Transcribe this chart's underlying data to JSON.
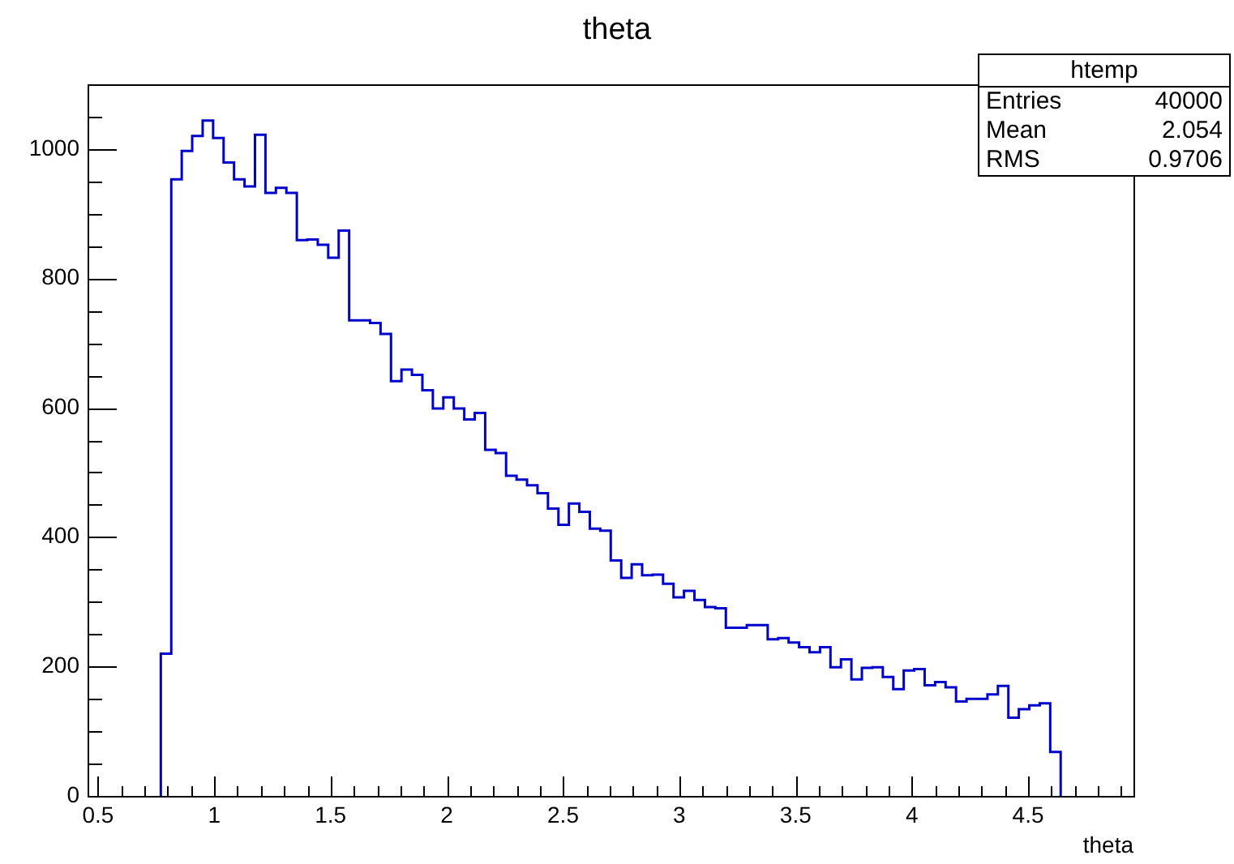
{
  "chart_data": {
    "type": "histogram",
    "title": "theta",
    "xlabel": "theta",
    "bins": [
      0.77,
      0.815,
      0.86,
      0.905,
      0.95,
      0.995,
      1.04,
      1.085,
      1.13,
      1.175,
      1.22,
      1.265,
      1.31,
      1.355,
      1.4,
      1.445,
      1.49,
      1.535,
      1.58,
      1.625,
      1.67,
      1.715,
      1.76,
      1.805,
      1.85,
      1.895,
      1.94,
      1.985,
      2.03,
      2.075,
      2.12,
      2.165,
      2.21,
      2.255,
      2.3,
      2.345,
      2.39,
      2.435,
      2.48,
      2.525,
      2.57,
      2.615,
      2.66,
      2.705,
      2.75,
      2.795,
      2.84,
      2.885,
      2.93,
      2.975,
      3.02,
      3.065,
      3.11,
      3.155,
      3.2,
      3.245,
      3.29,
      3.335,
      3.38,
      3.425,
      3.47,
      3.515,
      3.56,
      3.605,
      3.65,
      3.695,
      3.74,
      3.785,
      3.83,
      3.875,
      3.92,
      3.965,
      4.01,
      4.055,
      4.1,
      4.145,
      4.19,
      4.235,
      4.28,
      4.325,
      4.37,
      4.415,
      4.46,
      4.505,
      4.55,
      4.595,
      4.64
    ],
    "values": [
      220,
      953,
      997,
      1020,
      1044,
      1017,
      979,
      953,
      942,
      1022,
      932,
      940,
      932,
      859,
      860,
      852,
      832,
      874,
      735,
      735,
      731,
      714,
      641,
      659,
      651,
      627,
      599,
      616,
      599,
      582,
      592,
      535,
      530,
      495,
      489,
      480,
      468,
      444,
      419,
      452,
      439,
      413,
      410,
      364,
      337,
      358,
      341,
      342,
      328,
      307,
      317,
      303,
      292,
      290,
      260,
      260,
      264,
      264,
      242,
      244,
      237,
      230,
      222,
      230,
      199,
      211,
      180,
      198,
      199,
      184,
      165,
      194,
      196,
      171,
      176,
      168,
      146,
      150,
      150,
      157,
      170,
      121,
      134,
      140,
      143,
      68
    ],
    "color": "#0000cc",
    "xlim": [
      0.455,
      4.953
    ],
    "xticks": [
      0.5,
      {
        "value": 0.6,
        "label": null
      },
      {
        "value": 0.7,
        "label": null
      },
      {
        "value": 0.8,
        "label": null
      },
      {
        "value": 0.9,
        "label": null
      },
      1,
      {
        "value": 1.1,
        "label": null
      },
      {
        "value": 1.2,
        "label": null
      },
      {
        "value": 1.3,
        "label": null
      },
      {
        "value": 1.4,
        "label": null
      },
      1.5,
      {
        "value": 1.6,
        "label": null
      },
      {
        "value": 1.7,
        "label": null
      },
      {
        "value": 1.8,
        "label": null
      },
      {
        "value": 1.9,
        "label": null
      },
      2,
      {
        "value": 2.1,
        "label": null
      },
      {
        "value": 2.2,
        "label": null
      },
      {
        "value": 2.3,
        "label": null
      },
      {
        "value": 2.4,
        "label": null
      },
      2.5,
      {
        "value": 2.6,
        "label": null
      },
      {
        "value": 2.7,
        "label": null
      },
      {
        "value": 2.8,
        "label": null
      },
      {
        "value": 2.9,
        "label": null
      },
      3,
      {
        "value": 3.1,
        "label": null
      },
      {
        "value": 3.2,
        "label": null
      },
      {
        "value": 3.3,
        "label": null
      },
      {
        "value": 3.4,
        "label": null
      },
      3.5,
      {
        "value": 3.6,
        "label": null
      },
      {
        "value": 3.7,
        "label": null
      },
      {
        "value": 3.8,
        "label": null
      },
      {
        "value": 3.9,
        "label": null
      },
      4,
      {
        "value": 4.1,
        "label": null
      },
      {
        "value": 4.2,
        "label": null
      },
      {
        "value": 4.3,
        "label": null
      },
      {
        "value": 4.4,
        "label": null
      },
      4.5,
      {
        "value": 4.6,
        "label": null
      },
      {
        "value": 4.7,
        "label": null
      },
      {
        "value": 4.8,
        "label": null
      },
      {
        "value": 4.9,
        "label": null
      }
    ],
    "ylim": [
      0,
      1100
    ],
    "yticks": [
      0,
      {
        "value": 50,
        "label": null
      },
      {
        "value": 100,
        "label": null
      },
      {
        "value": 150,
        "label": null
      },
      200,
      {
        "value": 250,
        "label": null
      },
      {
        "value": 300,
        "label": null
      },
      {
        "value": 350,
        "label": null
      },
      400,
      {
        "value": 450,
        "label": null
      },
      {
        "value": 500,
        "label": null
      },
      {
        "value": 550,
        "label": null
      },
      600,
      {
        "value": 650,
        "label": null
      },
      {
        "value": 700,
        "label": null
      },
      {
        "value": 750,
        "label": null
      },
      800,
      {
        "value": 850,
        "label": null
      },
      {
        "value": 900,
        "label": null
      },
      {
        "value": 950,
        "label": null
      },
      1000,
      {
        "value": 1050,
        "label": null
      }
    ],
    "annotations": [
      "htemp",
      "Entries",
      "40000",
      "Mean",
      "2.054",
      "RMS",
      "0.9706"
    ]
  }
}
